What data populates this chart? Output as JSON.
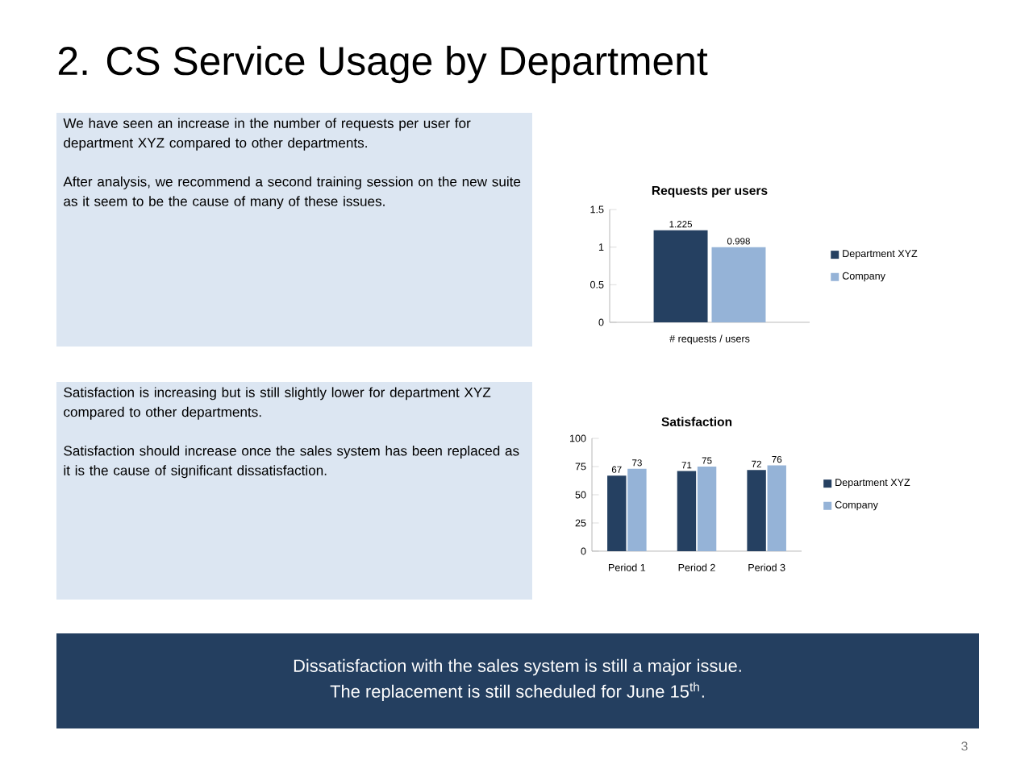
{
  "chart_data": [
    {
      "type": "other",
      "title": "2. CS Service Usage by Department",
      "annotations": [
        "We have seen an increase in the number of requests per user for department XYZ compared to other departments.",
        "After analysis, we recommend a second training session on the new suite as it seem to be the cause of many of these issues.",
        "Satisfaction is increasing but is still slightly lower for department XYZ compared to other departments.",
        "Satisfaction should increase once the sales system has been replaced as it is the cause of significant dissatisfaction.",
        "Dissatisfaction with the sales system is still a major issue.",
        "The replacement is still scheduled for June 15$^{th}$.",
        "3"
      ]
    },
    {
      "type": "bar",
      "title": "Requests per users",
      "categories": [
        "# requests / users"
      ],
      "ylim": [
        0,
        1.5
      ],
      "yticks": [
        0,
        0.5,
        1,
        1.5
      ],
      "legend": "right",
      "data_labels": true,
      "series": [
        {
          "name": "Department XYZ",
          "color": "#254061",
          "values": [
            1.225
          ]
        },
        {
          "name": "Company",
          "color": "#95b3d7",
          "values": [
            0.998
          ]
        }
      ]
    },
    {
      "type": "bar",
      "title": "Satisfaction",
      "categories": [
        "Period 1",
        "Period 2",
        "Period 3"
      ],
      "ylim": [
        0,
        100
      ],
      "yticks": [
        0,
        25,
        50,
        75,
        100
      ],
      "legend": "right",
      "data_labels": true,
      "series": [
        {
          "name": "Department XYZ",
          "color": "#254061",
          "values": [
            67,
            71,
            72
          ]
        },
        {
          "name": "Company",
          "color": "#95b3d7",
          "values": [
            73,
            75,
            76
          ]
        }
      ]
    }
  ]
}
